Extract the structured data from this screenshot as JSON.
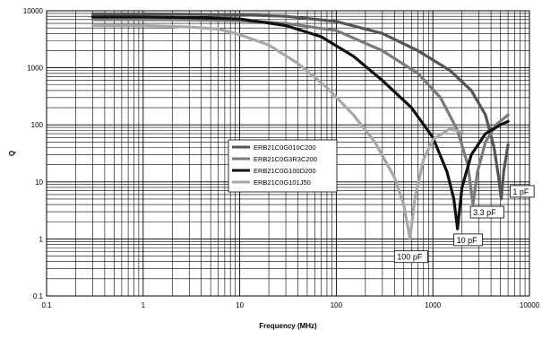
{
  "chart_data": {
    "type": "line",
    "title": "",
    "xlabel": "Frequency (MHz)",
    "ylabel": "Q",
    "xscale": "log",
    "yscale": "log",
    "xlim": [
      0.1,
      10000
    ],
    "ylim": [
      0.1,
      10000
    ],
    "x_ticks": [
      "0.1",
      "1",
      "10",
      "100",
      "1000",
      "10000"
    ],
    "y_ticks": [
      "0.1",
      "1",
      "10",
      "100",
      "1000",
      "10000"
    ],
    "grid": true,
    "legend_position": "center-left",
    "series": [
      {
        "name": "ERB21C0G010C200",
        "callout": "1 pF",
        "color": "#555555",
        "points": [
          [
            0.3,
            8800
          ],
          [
            1,
            8800
          ],
          [
            3,
            8700
          ],
          [
            10,
            8500
          ],
          [
            30,
            8000
          ],
          [
            100,
            6500
          ],
          [
            300,
            4000
          ],
          [
            700,
            2000
          ],
          [
            1500,
            900
          ],
          [
            2500,
            400
          ],
          [
            3500,
            150
          ],
          [
            4300,
            40
          ],
          [
            4800,
            12
          ],
          [
            5100,
            5
          ],
          [
            5400,
            15
          ],
          [
            6000,
            45
          ]
        ]
      },
      {
        "name": "ERB21C0G3R3C200",
        "callout": "3.3 pF",
        "color": "#7a7a7a",
        "points": [
          [
            0.3,
            7000
          ],
          [
            1,
            7000
          ],
          [
            3,
            6900
          ],
          [
            10,
            6700
          ],
          [
            30,
            6000
          ],
          [
            100,
            4500
          ],
          [
            300,
            2000
          ],
          [
            700,
            800
          ],
          [
            1200,
            300
          ],
          [
            1800,
            80
          ],
          [
            2300,
            20
          ],
          [
            2600,
            4
          ],
          [
            2900,
            15
          ],
          [
            3500,
            50
          ],
          [
            4500,
            100
          ],
          [
            6000,
            150
          ]
        ]
      },
      {
        "name": "ERB21C0G100D200",
        "callout": "10 pF",
        "color": "#111111",
        "points": [
          [
            0.3,
            7800
          ],
          [
            1,
            7800
          ],
          [
            3,
            7600
          ],
          [
            10,
            7200
          ],
          [
            30,
            5500
          ],
          [
            70,
            3500
          ],
          [
            150,
            1600
          ],
          [
            300,
            600
          ],
          [
            600,
            200
          ],
          [
            1000,
            60
          ],
          [
            1400,
            15
          ],
          [
            1650,
            5
          ],
          [
            1800,
            1.5
          ],
          [
            2000,
            8
          ],
          [
            2500,
            30
          ],
          [
            3500,
            70
          ],
          [
            5000,
            100
          ],
          [
            6000,
            115
          ]
        ]
      },
      {
        "name": "ERB21C0G101J50",
        "callout": "100 pF",
        "color": "#a8a8a8",
        "points": [
          [
            0.3,
            5500
          ],
          [
            1,
            5500
          ],
          [
            3,
            5200
          ],
          [
            6,
            4800
          ],
          [
            10,
            3800
          ],
          [
            20,
            2500
          ],
          [
            40,
            1200
          ],
          [
            80,
            450
          ],
          [
            150,
            150
          ],
          [
            250,
            50
          ],
          [
            400,
            12
          ],
          [
            500,
            4
          ],
          [
            580,
            1
          ],
          [
            650,
            5
          ],
          [
            800,
            25
          ],
          [
            1000,
            55
          ],
          [
            1500,
            85
          ],
          [
            2000,
            75
          ]
        ]
      }
    ]
  }
}
